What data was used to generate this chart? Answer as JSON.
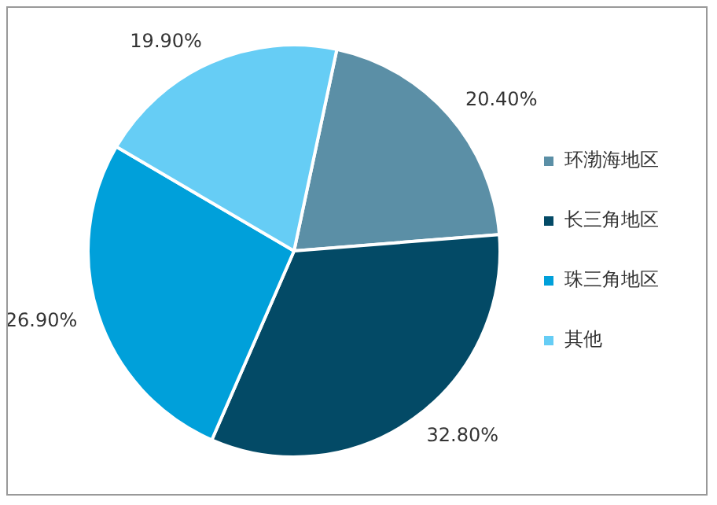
{
  "chart_data": {
    "type": "pie",
    "categories": [
      "环渤海地区",
      "长三角地区",
      "珠三角地区",
      "其他"
    ],
    "values": [
      20.4,
      32.8,
      26.9,
      19.9
    ],
    "colors": [
      "#5b8fa6",
      "#034a66",
      "#00a0da",
      "#66cdf5"
    ],
    "value_labels": [
      "20.40%",
      "32.80%",
      "26.90%",
      "19.90%"
    ],
    "legend": "right"
  }
}
